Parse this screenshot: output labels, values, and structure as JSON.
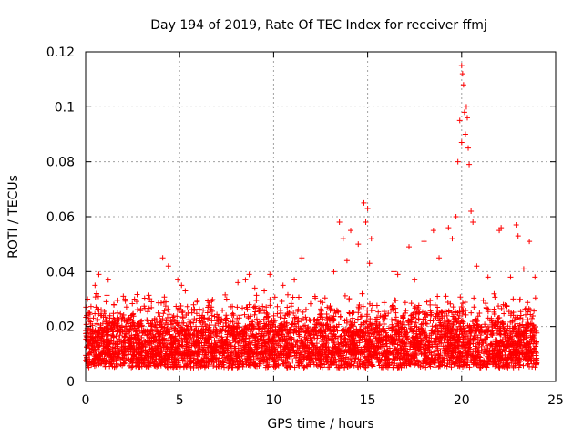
{
  "chart_data": {
    "type": "scatter",
    "title": "Day 194 of 2019, Rate Of TEC Index for receiver ffmj",
    "xlabel": "GPS time / hours",
    "ylabel": "ROTI / TECUs",
    "xlim": [
      0,
      25
    ],
    "ylim": [
      0,
      0.12
    ],
    "x_ticks": [
      "0",
      "5",
      "10",
      "15",
      "20",
      "25"
    ],
    "y_ticks": [
      "0",
      "0.02",
      "0.04",
      "0.06",
      "0.08",
      "0.1",
      "0.12"
    ],
    "grid": true,
    "marker": "+",
    "color": "#ff0000",
    "series": [
      {
        "name": "ROTI",
        "background_band": {
          "x_range": [
            0,
            24
          ],
          "y_low": 0.005,
          "y_high": 0.022,
          "typical": 0.012
        },
        "highlighted_points": [
          {
            "x": 0.1,
            "y": 0.03
          },
          {
            "x": 0.5,
            "y": 0.035
          },
          {
            "x": 0.7,
            "y": 0.039
          },
          {
            "x": 1.2,
            "y": 0.037
          },
          {
            "x": 1.5,
            "y": 0.028
          },
          {
            "x": 2.6,
            "y": 0.03
          },
          {
            "x": 3.5,
            "y": 0.029
          },
          {
            "x": 4.1,
            "y": 0.045
          },
          {
            "x": 4.4,
            "y": 0.042
          },
          {
            "x": 4.9,
            "y": 0.037
          },
          {
            "x": 5.1,
            "y": 0.035
          },
          {
            "x": 5.3,
            "y": 0.033
          },
          {
            "x": 6.5,
            "y": 0.027
          },
          {
            "x": 7.5,
            "y": 0.03
          },
          {
            "x": 8.1,
            "y": 0.036
          },
          {
            "x": 8.5,
            "y": 0.037
          },
          {
            "x": 8.7,
            "y": 0.039
          },
          {
            "x": 9.0,
            "y": 0.034
          },
          {
            "x": 9.5,
            "y": 0.033
          },
          {
            "x": 9.8,
            "y": 0.039
          },
          {
            "x": 10.5,
            "y": 0.035
          },
          {
            "x": 11.1,
            "y": 0.037
          },
          {
            "x": 11.5,
            "y": 0.045
          },
          {
            "x": 12.2,
            "y": 0.031
          },
          {
            "x": 13.2,
            "y": 0.04
          },
          {
            "x": 13.5,
            "y": 0.058
          },
          {
            "x": 13.7,
            "y": 0.052
          },
          {
            "x": 13.9,
            "y": 0.044
          },
          {
            "x": 14.1,
            "y": 0.055
          },
          {
            "x": 14.5,
            "y": 0.05
          },
          {
            "x": 14.8,
            "y": 0.065
          },
          {
            "x": 14.9,
            "y": 0.058
          },
          {
            "x": 15.0,
            "y": 0.063
          },
          {
            "x": 15.1,
            "y": 0.043
          },
          {
            "x": 15.2,
            "y": 0.052
          },
          {
            "x": 16.4,
            "y": 0.04
          },
          {
            "x": 16.6,
            "y": 0.039
          },
          {
            "x": 17.2,
            "y": 0.049
          },
          {
            "x": 17.5,
            "y": 0.037
          },
          {
            "x": 18.0,
            "y": 0.051
          },
          {
            "x": 18.5,
            "y": 0.055
          },
          {
            "x": 18.8,
            "y": 0.045
          },
          {
            "x": 19.3,
            "y": 0.056
          },
          {
            "x": 19.5,
            "y": 0.052
          },
          {
            "x": 19.7,
            "y": 0.06
          },
          {
            "x": 19.8,
            "y": 0.08
          },
          {
            "x": 19.9,
            "y": 0.095
          },
          {
            "x": 20.0,
            "y": 0.087
          },
          {
            "x": 20.0,
            "y": 0.115
          },
          {
            "x": 20.05,
            "y": 0.112
          },
          {
            "x": 20.1,
            "y": 0.108
          },
          {
            "x": 20.15,
            "y": 0.098
          },
          {
            "x": 20.2,
            "y": 0.09
          },
          {
            "x": 20.25,
            "y": 0.1
          },
          {
            "x": 20.3,
            "y": 0.096
          },
          {
            "x": 20.35,
            "y": 0.085
          },
          {
            "x": 20.4,
            "y": 0.079
          },
          {
            "x": 20.5,
            "y": 0.062
          },
          {
            "x": 20.6,
            "y": 0.058
          },
          {
            "x": 20.8,
            "y": 0.042
          },
          {
            "x": 21.4,
            "y": 0.038
          },
          {
            "x": 22.0,
            "y": 0.055
          },
          {
            "x": 22.1,
            "y": 0.056
          },
          {
            "x": 22.6,
            "y": 0.038
          },
          {
            "x": 22.9,
            "y": 0.057
          },
          {
            "x": 23.0,
            "y": 0.053
          },
          {
            "x": 23.3,
            "y": 0.041
          },
          {
            "x": 23.6,
            "y": 0.051
          },
          {
            "x": 23.9,
            "y": 0.038
          }
        ]
      }
    ]
  }
}
